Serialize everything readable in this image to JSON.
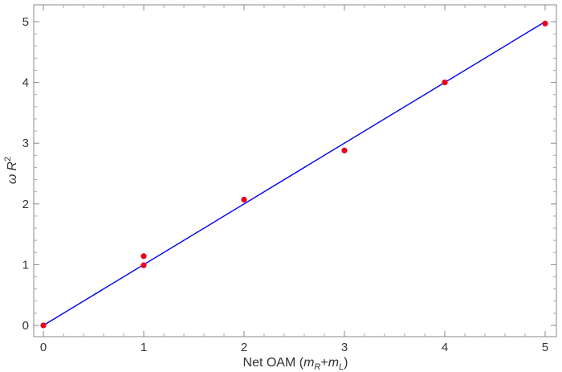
{
  "chart_data": {
    "type": "scatter",
    "xlabel": "Net OAM (m_R+m_L)",
    "xlabel_parts": {
      "prefix": "Net OAM (",
      "m1": "m",
      "sub1": "R",
      "plus": "+",
      "m2": "m",
      "sub2": "L",
      "suffix": ")"
    },
    "ylabel": "ω R²",
    "ylabel_parts": {
      "omega": "ω",
      "R": "R",
      "sup": "2"
    },
    "xlim": [
      0,
      5
    ],
    "ylim": [
      0,
      5
    ],
    "x_ticks": [
      0,
      1,
      2,
      3,
      4,
      5
    ],
    "y_ticks": [
      0,
      1,
      2,
      3,
      4,
      5
    ],
    "x_tick_labels": [
      "0",
      "1",
      "2",
      "3",
      "4",
      "5"
    ],
    "y_tick_labels": [
      "0",
      "1",
      "2",
      "3",
      "4",
      "5"
    ],
    "grid": false,
    "series": [
      {
        "type": "scatter",
        "color": "#e8001c",
        "points": [
          {
            "x": 0,
            "y": 0.0
          },
          {
            "x": 1,
            "y": 1.14
          },
          {
            "x": 1,
            "y": 0.99
          },
          {
            "x": 2,
            "y": 2.07
          },
          {
            "x": 3,
            "y": 2.88
          },
          {
            "x": 4,
            "y": 4.0
          },
          {
            "x": 5,
            "y": 4.97
          }
        ]
      },
      {
        "type": "line",
        "color": "#0000ee",
        "points": [
          {
            "x": 0,
            "y": 0
          },
          {
            "x": 5,
            "y": 5
          }
        ]
      }
    ]
  }
}
